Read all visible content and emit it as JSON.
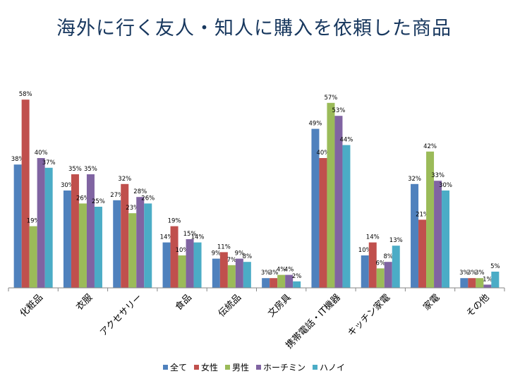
{
  "title": "海外に行く友人・知人に購入を依頼した商品",
  "chart_data": {
    "type": "bar",
    "title": "海外に行く友人・知人に購入を依頼した商品",
    "categories": [
      "化粧品",
      "衣服",
      "アクセサリー",
      "食品",
      "伝統品",
      "文房具",
      "携帯電話・IT機器",
      "キッチン家電",
      "家電",
      "その他"
    ],
    "series": [
      {
        "name": "全て",
        "color": "#4f81bd",
        "values": [
          38,
          30,
          27,
          14,
          9,
          3,
          49,
          10,
          32,
          3
        ]
      },
      {
        "name": "女性",
        "color": "#c0504d",
        "values": [
          58,
          35,
          32,
          19,
          11,
          3,
          40,
          14,
          21,
          3
        ]
      },
      {
        "name": "男性",
        "color": "#9bbb59",
        "values": [
          19,
          26,
          23,
          10,
          7,
          4,
          57,
          6,
          42,
          3
        ]
      },
      {
        "name": "ホーチミン",
        "color": "#8064a2",
        "values": [
          40,
          35,
          28,
          15,
          9,
          4,
          53,
          8,
          33,
          1
        ]
      },
      {
        "name": "ハノイ",
        "color": "#4bacc6",
        "values": [
          37,
          25,
          26,
          14,
          8,
          2,
          44,
          13,
          30,
          5
        ]
      }
    ],
    "value_suffix": "%",
    "ylim": [
      0,
      60
    ],
    "grid": false,
    "legend_position": "bottom"
  }
}
